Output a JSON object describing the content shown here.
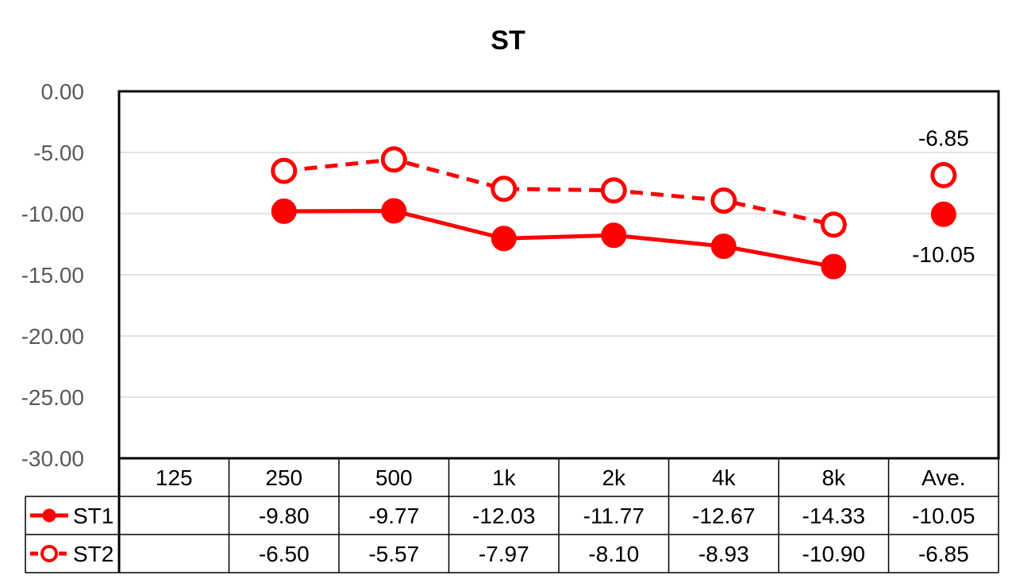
{
  "chart_data": {
    "type": "line",
    "title": "ST",
    "categories": [
      "125",
      "250",
      "500",
      "1k",
      "2k",
      "4k",
      "8k",
      "Ave."
    ],
    "ylim": [
      -30,
      0
    ],
    "yticks": [
      "0.00",
      "-5.00",
      "-10.00",
      "-15.00",
      "-20.00",
      "-25.00",
      "-30.00"
    ],
    "ytick_values": [
      0,
      -5,
      -10,
      -15,
      -20,
      -25,
      -30
    ],
    "grid": true,
    "legend_placement": "data-table-left",
    "series": [
      {
        "name": "ST1",
        "color": "#ff0000",
        "marker": "filled-circle",
        "line": "solid",
        "values": [
          null,
          -9.8,
          -9.77,
          -12.03,
          -11.77,
          -12.67,
          -14.33,
          -10.05
        ],
        "table_labels": [
          "",
          "-9.80",
          "-9.77",
          "-12.03",
          "-11.77",
          "-12.67",
          "-14.33",
          "-10.05"
        ],
        "average_label": "-10.05"
      },
      {
        "name": "ST2",
        "color": "#ff0000",
        "marker": "hollow-circle",
        "line": "dashed",
        "values": [
          null,
          -6.5,
          -5.57,
          -7.97,
          -8.1,
          -8.93,
          -10.9,
          -6.85
        ],
        "table_labels": [
          "",
          "-6.50",
          "-5.57",
          "-7.97",
          "-8.10",
          "-8.93",
          "-10.90",
          "-6.85"
        ],
        "average_label": "-6.85"
      }
    ]
  }
}
